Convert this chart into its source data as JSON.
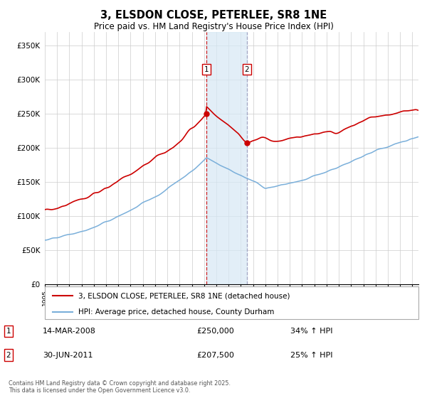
{
  "title": "3, ELSDON CLOSE, PETERLEE, SR8 1NE",
  "subtitle": "Price paid vs. HM Land Registry's House Price Index (HPI)",
  "ylabel_ticks": [
    "£0",
    "£50K",
    "£100K",
    "£150K",
    "£200K",
    "£250K",
    "£300K",
    "£350K"
  ],
  "ytick_values": [
    0,
    50000,
    100000,
    150000,
    200000,
    250000,
    300000,
    350000
  ],
  "ylim": [
    0,
    370000
  ],
  "xlim_start": 1995.0,
  "xlim_end": 2025.5,
  "sale1_x": 2008.19,
  "sale1_y": 250000,
  "sale2_x": 2011.49,
  "sale2_y": 207500,
  "shade_x1": 2008.19,
  "shade_x2": 2011.49,
  "red_color": "#cc0000",
  "blue_color": "#7aafda",
  "legend1": "3, ELSDON CLOSE, PETERLEE, SR8 1NE (detached house)",
  "legend2": "HPI: Average price, detached house, County Durham",
  "annotation1_date": "14-MAR-2008",
  "annotation1_price": "£250,000",
  "annotation1_hpi": "34% ↑ HPI",
  "annotation2_date": "30-JUN-2011",
  "annotation2_price": "£207,500",
  "annotation2_hpi": "25% ↑ HPI",
  "footnote": "Contains HM Land Registry data © Crown copyright and database right 2025.\nThis data is licensed under the Open Government Licence v3.0.",
  "background_color": "#ffffff",
  "grid_color": "#cccccc"
}
